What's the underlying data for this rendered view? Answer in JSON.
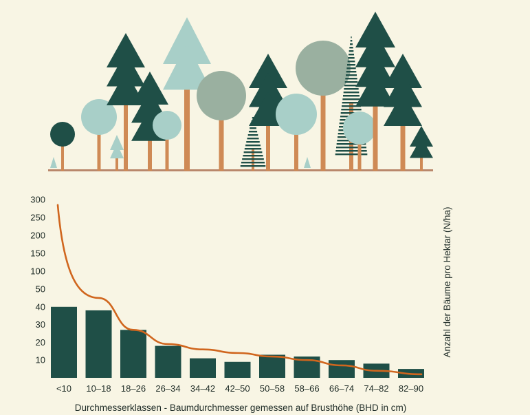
{
  "colors": {
    "background": "#f8f5e4",
    "bar": "#1f4f47",
    "curve": "#d0661e",
    "text": "#1e2b26",
    "tree_dark": "#1f4f47",
    "tree_light": "#a8cfc8",
    "tree_grey": "#9ab0a0",
    "trunk": "#cf8a55",
    "ground": "#b9876b"
  },
  "illustration": {
    "description_icon": "forest-illustration-icon"
  },
  "chart_data": {
    "type": "bar",
    "categories": [
      "<10",
      "10–18",
      "18–26",
      "26–34",
      "34–42",
      "42–50",
      "50–58",
      "58–66",
      "66–74",
      "74–82",
      "82–90"
    ],
    "series": [
      {
        "values": [
          40,
          38,
          27,
          18,
          11,
          9,
          13,
          12,
          10,
          8,
          5
        ]
      }
    ],
    "curve": {
      "type": "line",
      "x": [
        "<10",
        "10–18",
        "18–26",
        "26–34",
        "34–42",
        "42–50",
        "50–58",
        "58–66",
        "66–74",
        "74–82",
        "82–90"
      ],
      "y": [
        285,
        45,
        27,
        19,
        16,
        14,
        12,
        10,
        7,
        4,
        2
      ]
    },
    "y_ticks": [
      10,
      20,
      30,
      40,
      50,
      100,
      150,
      200,
      250,
      300
    ],
    "xlabel": "Durchmesserklassen - Baumdurchmesser gemessen auf Brusthöhe (BHD in cm)",
    "ylabel": "Anzahl der Bäume pro Hektar (N/ha)",
    "y_scale": "piecewise: linear 0–50, compressed linear 50–300"
  }
}
